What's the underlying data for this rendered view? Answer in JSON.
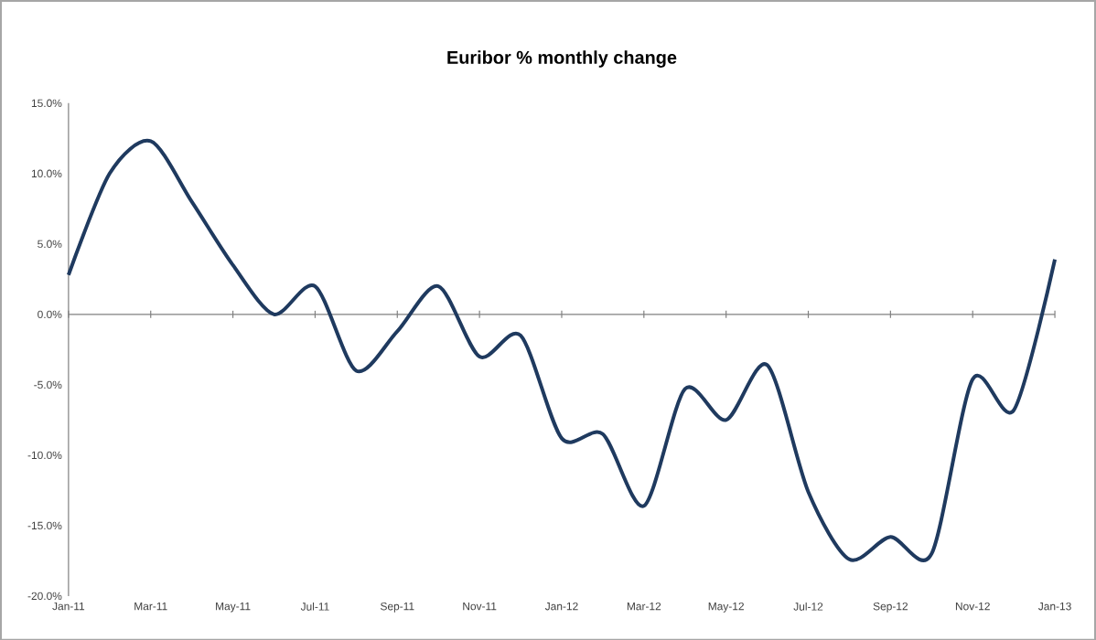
{
  "chart_data": {
    "type": "line",
    "title": "Euribor % monthly change",
    "categories": [
      "Jan-11",
      null,
      "Mar-11",
      null,
      "May-11",
      null,
      "Jul-11",
      null,
      "Sep-11",
      null,
      "Nov-11",
      null,
      "Jan-12",
      null,
      "Mar-12",
      null,
      "May-12",
      null,
      "Jul-12",
      null,
      "Sep-12",
      null,
      "Nov-12",
      null,
      "Jan-13"
    ],
    "series": [
      {
        "color": "#1f3a5f",
        "values": [
          2.8,
          10.0,
          12.3,
          8.0,
          3.5,
          0.0,
          2.0,
          -4.0,
          -1.2,
          2.0,
          -3.0,
          -1.5,
          -8.8,
          -8.5,
          -13.6,
          -5.3,
          -7.5,
          -3.6,
          -12.6,
          -17.4,
          -15.8,
          -17.0,
          -4.6,
          -6.8,
          3.9
        ]
      }
    ],
    "ylim": [
      -20,
      15
    ],
    "yticks": [
      {
        "value": -20,
        "label": "-20.0%"
      },
      {
        "value": -15,
        "label": "-15.0%"
      },
      {
        "value": -10,
        "label": "-10.0%"
      },
      {
        "value": -5,
        "label": "-5.0%"
      },
      {
        "value": 0,
        "label": "0.0%"
      },
      {
        "value": 5,
        "label": "5.0%"
      },
      {
        "value": 10,
        "label": "10.0%"
      },
      {
        "value": 15,
        "label": "15.0%"
      }
    ],
    "marker": "none",
    "line_style": "solid"
  }
}
